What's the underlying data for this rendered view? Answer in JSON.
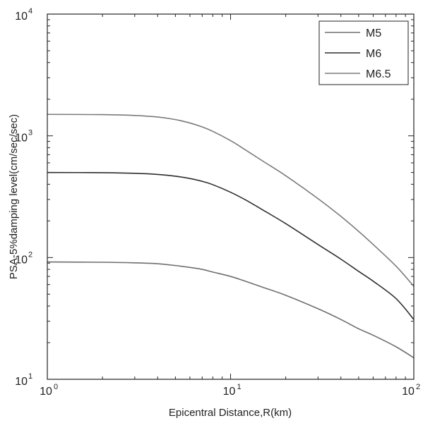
{
  "chart_data": {
    "type": "line",
    "xlabel": "Epicentral Distance,R(km)",
    "ylabel": "PSA-5%damping level(cm/sec/sec)",
    "xscale": "log",
    "yscale": "log",
    "xlim": [
      1,
      100
    ],
    "ylim": [
      10,
      10000
    ],
    "x_ticks": [
      {
        "value": 1,
        "base": "10",
        "exp": "0"
      },
      {
        "value": 10,
        "base": "10",
        "exp": "1"
      },
      {
        "value": 100,
        "base": "10",
        "exp": "2"
      }
    ],
    "y_ticks": [
      {
        "value": 10,
        "base": "10",
        "exp": "1"
      },
      {
        "value": 100,
        "base": "10",
        "exp": "2"
      },
      {
        "value": 1000,
        "base": "10",
        "exp": "3"
      },
      {
        "value": 10000,
        "base": "10",
        "exp": "4"
      }
    ],
    "legend_position": "top-right",
    "grid": false,
    "x": [
      1,
      2,
      3,
      4,
      5,
      6,
      7,
      8,
      10,
      12,
      15,
      20,
      30,
      40,
      50,
      60,
      80,
      100
    ],
    "series": [
      {
        "name": "M5",
        "color": "#6e6e6e",
        "values": [
          92,
          91.5,
          90.5,
          89,
          86,
          83,
          80,
          76,
          70,
          64,
          57,
          49,
          38,
          31,
          26,
          23,
          18.5,
          15
        ]
      },
      {
        "name": "M6",
        "color": "#2e2e2e",
        "values": [
          500,
          498,
          492,
          482,
          466,
          446,
          423,
          397,
          344,
          299,
          246,
          190,
          128,
          97,
          77,
          64,
          46,
          31
        ]
      },
      {
        "name": "M6.5",
        "color": "#7a7a7a",
        "values": [
          1500,
          1493,
          1470,
          1428,
          1360,
          1275,
          1183,
          1088,
          913,
          770,
          620,
          470,
          305,
          218,
          164,
          128,
          85,
          58
        ]
      }
    ]
  }
}
